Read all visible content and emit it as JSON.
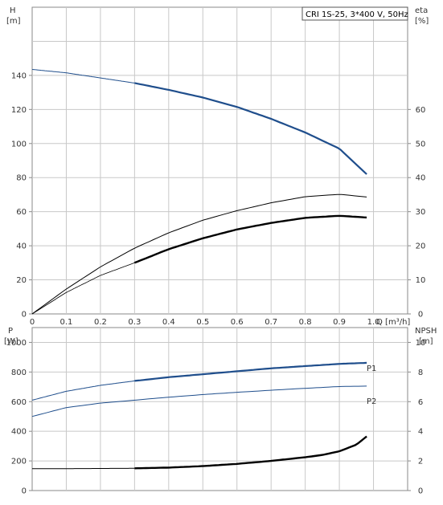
{
  "colors": {
    "grid": "#c8c8c8",
    "frame": "#8a8a8a",
    "blue": "#1f4e8c",
    "black": "#000000",
    "label_blue": "#2a5a9a"
  },
  "chart_data": [
    {
      "type": "line",
      "legend_text": "CRI 1S-25, 3*400 V, 50Hz",
      "xlabel": "Q [m³/h]",
      "xlim": [
        0,
        1.1
      ],
      "xticks": [
        0,
        0.1,
        0.2,
        0.3,
        0.4,
        0.5,
        0.6,
        0.7,
        0.8,
        0.9,
        1.0
      ],
      "xtick_labels": [
        "0",
        "0.1",
        "0.2",
        "0.3",
        "0.4",
        "0.5",
        "0.6",
        "0.7",
        "0.8",
        "0.9",
        "1.0"
      ],
      "y_left": {
        "label_line1": "H",
        "label_line2": "[m]",
        "lim": [
          0,
          180
        ],
        "ticks": [
          0,
          20,
          40,
          60,
          80,
          100,
          120,
          140
        ],
        "tick_labels": [
          "0",
          "20",
          "40",
          "60",
          "80",
          "100",
          "120",
          "140"
        ]
      },
      "y_right": {
        "label_line1": "eta",
        "label_line2": "[%]",
        "lim": [
          0,
          90
        ],
        "ticks": [
          0,
          10,
          20,
          30,
          40,
          50,
          60
        ],
        "tick_labels": [
          "0",
          "10",
          "20",
          "30",
          "40",
          "50",
          "60"
        ]
      },
      "grid": true,
      "series": [
        {
          "axis": "left",
          "style": "head",
          "highlight_from": 0.3,
          "x": [
            0,
            0.1,
            0.2,
            0.3,
            0.4,
            0.5,
            0.6,
            0.7,
            0.8,
            0.9,
            0.98
          ],
          "values": [
            143.5,
            141.5,
            138.5,
            135.5,
            131.5,
            127,
            121.5,
            114.5,
            106.5,
            97,
            82
          ]
        },
        {
          "axis": "right",
          "style": "thin",
          "x": [
            0,
            0.1,
            0.2,
            0.3,
            0.4,
            0.5,
            0.6,
            0.7,
            0.8,
            0.9,
            0.98
          ],
          "values": [
            0,
            7.3,
            13.8,
            19.3,
            23.8,
            27.5,
            30.3,
            32.6,
            34.4,
            35.1,
            34.3
          ]
        },
        {
          "axis": "right",
          "style": "thin-then-bold",
          "highlight_from": 0.3,
          "x": [
            0,
            0.1,
            0.2,
            0.3,
            0.4,
            0.5,
            0.6,
            0.7,
            0.8,
            0.9,
            0.98
          ],
          "values": [
            0,
            6.3,
            11.3,
            15,
            19,
            22.2,
            24.8,
            26.7,
            28.2,
            28.8,
            28.3
          ]
        }
      ]
    },
    {
      "type": "line",
      "xlim": [
        0,
        1.1
      ],
      "xticks": [
        0,
        0.1,
        0.2,
        0.3,
        0.4,
        0.5,
        0.6,
        0.7,
        0.8,
        0.9,
        1.0
      ],
      "y_left": {
        "label_line1": "P",
        "label_line2": "[W]",
        "lim": [
          0,
          1100
        ],
        "ticks": [
          0,
          200,
          400,
          600,
          800,
          1000
        ],
        "tick_labels": [
          "0",
          "200",
          "400",
          "600",
          "800",
          "1000"
        ]
      },
      "y_right": {
        "label_line1": "NPSH",
        "label_line2": "[m]",
        "lim": [
          0,
          11
        ],
        "ticks": [
          0,
          2,
          4,
          6,
          8,
          10
        ],
        "tick_labels": [
          "0",
          "2",
          "4",
          "6",
          "8",
          "10"
        ]
      },
      "grid": true,
      "series": [
        {
          "name": "P1",
          "axis": "left",
          "style": "blue-then-bold",
          "highlight_from": 0.3,
          "x": [
            0,
            0.1,
            0.2,
            0.3,
            0.4,
            0.5,
            0.6,
            0.7,
            0.8,
            0.9,
            0.98
          ],
          "values": [
            610,
            670,
            710,
            740,
            765,
            785,
            805,
            825,
            840,
            855,
            862
          ]
        },
        {
          "name": "P2",
          "axis": "left",
          "style": "blue-thin",
          "x": [
            0,
            0.1,
            0.2,
            0.3,
            0.4,
            0.5,
            0.6,
            0.7,
            0.8,
            0.9,
            0.98
          ],
          "values": [
            500,
            560,
            590,
            610,
            630,
            648,
            663,
            677,
            690,
            702,
            705
          ]
        },
        {
          "axis": "right",
          "style": "npsh",
          "highlight_from": 0.3,
          "x": [
            0,
            0.1,
            0.2,
            0.3,
            0.4,
            0.5,
            0.6,
            0.7,
            0.8,
            0.85,
            0.9,
            0.95,
            0.98
          ],
          "values": [
            1.48,
            1.48,
            1.49,
            1.5,
            1.55,
            1.65,
            1.8,
            2.0,
            2.25,
            2.4,
            2.65,
            3.1,
            3.65
          ]
        }
      ]
    }
  ]
}
